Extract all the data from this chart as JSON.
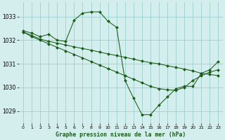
{
  "title": "Graphe pression niveau de la mer (hPa)",
  "background_color": "#d4eeed",
  "grid_color": "#9ecece",
  "line_color": "#1a5c1a",
  "marker_color": "#1a5c1a",
  "xlim": [
    -0.5,
    23.5
  ],
  "ylim": [
    1028.5,
    1033.6
  ],
  "yticks": [
    1029,
    1030,
    1031,
    1032,
    1033
  ],
  "xticks": [
    0,
    1,
    2,
    3,
    4,
    5,
    6,
    7,
    8,
    9,
    10,
    11,
    12,
    13,
    14,
    15,
    16,
    17,
    18,
    19,
    20,
    21,
    22,
    23
  ],
  "series": [
    {
      "x": [
        0,
        1,
        2,
        3,
        4,
        5,
        6,
        7,
        8,
        9,
        10,
        11,
        12,
        13,
        14,
        15,
        16,
        17,
        18,
        19,
        20,
        21,
        22,
        23
      ],
      "y": [
        1032.4,
        1032.3,
        1032.15,
        1032.25,
        1032.0,
        1031.95,
        1032.85,
        1033.15,
        1033.2,
        1033.2,
        1032.8,
        1032.55,
        1030.3,
        1029.55,
        1028.85,
        1028.85,
        1029.25,
        1029.6,
        1029.95,
        1030.05,
        1030.05,
        1030.6,
        1030.75,
        1031.1
      ]
    },
    {
      "x": [
        0,
        1,
        2,
        3,
        4,
        5,
        6,
        7,
        8,
        9,
        10,
        11,
        12,
        13,
        14,
        15,
        16,
        17,
        18,
        19,
        20,
        21,
        22,
        23
      ],
      "y": [
        1032.35,
        1032.2,
        1032.05,
        1031.95,
        1031.88,
        1031.8,
        1031.72,
        1031.65,
        1031.58,
        1031.5,
        1031.42,
        1031.35,
        1031.28,
        1031.2,
        1031.12,
        1031.05,
        1031.0,
        1030.92,
        1030.85,
        1030.78,
        1030.7,
        1030.6,
        1030.55,
        1030.5
      ]
    },
    {
      "x": [
        0,
        1,
        2,
        3,
        4,
        5,
        6,
        7,
        8,
        9,
        10,
        11,
        12,
        13,
        14,
        15,
        16,
        17,
        18,
        19,
        20,
        21,
        22,
        23
      ],
      "y": [
        1032.35,
        1032.15,
        1032.0,
        1031.85,
        1031.7,
        1031.55,
        1031.4,
        1031.25,
        1031.1,
        1030.95,
        1030.8,
        1030.65,
        1030.5,
        1030.35,
        1030.2,
        1030.05,
        1029.95,
        1029.9,
        1029.88,
        1030.0,
        1030.3,
        1030.5,
        1030.65,
        1030.75
      ]
    }
  ]
}
